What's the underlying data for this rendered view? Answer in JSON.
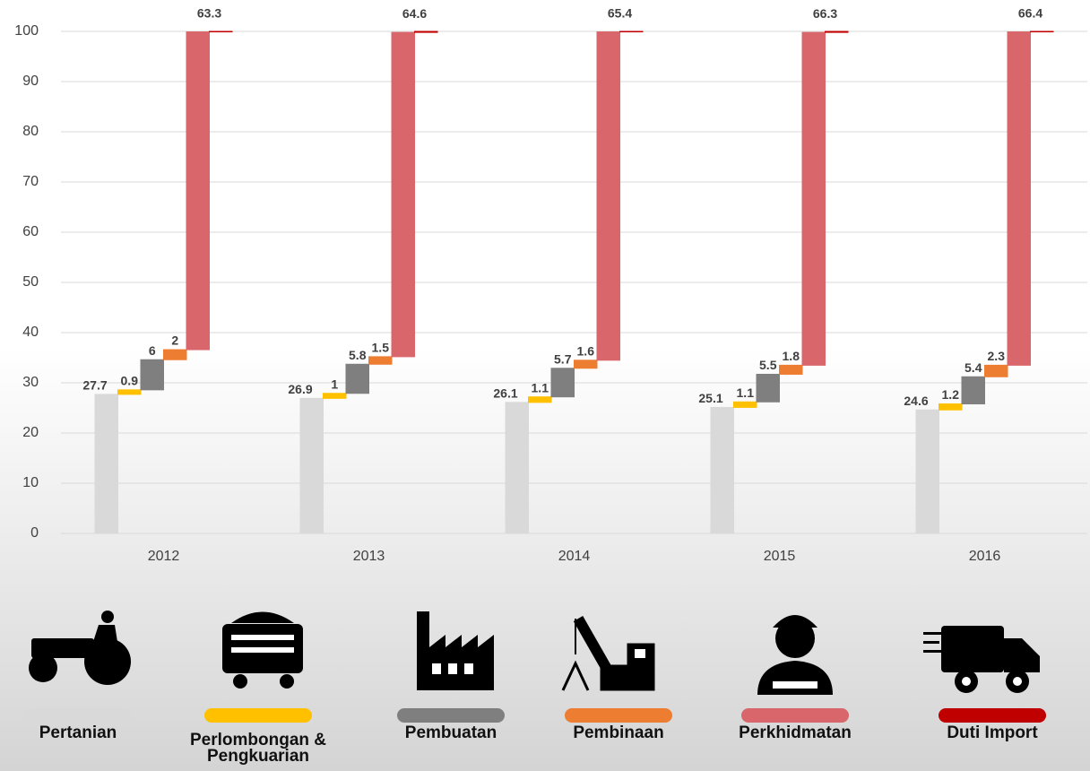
{
  "chart_data": {
    "type": "waterfall",
    "categories": [
      "2012",
      "2013",
      "2014",
      "2015",
      "2016"
    ],
    "series": [
      {
        "name": "Pertanian",
        "color": "#d9d9d9",
        "values": [
          27.7,
          26.9,
          26.1,
          25.1,
          24.6
        ]
      },
      {
        "name": "Perlombongan & Pengkuarian",
        "color": "#ffc000",
        "values": [
          0.9,
          1,
          1.1,
          1.1,
          1.2
        ]
      },
      {
        "name": "Pembuatan",
        "color": "#7f7f7f",
        "values": [
          6,
          5.8,
          5.7,
          5.5,
          5.4
        ]
      },
      {
        "name": "Pembinaan",
        "color": "#ed7d31",
        "values": [
          2,
          1.5,
          1.6,
          1.8,
          2.3
        ]
      },
      {
        "name": "Perkhidmatan",
        "color": "#d9666b",
        "values": [
          63.3,
          64.6,
          65.4,
          66.3,
          66.4
        ]
      },
      {
        "name": "Duti Import",
        "color": "#c00000",
        "values": [
          0.1,
          0.2,
          0.1,
          0.2,
          0.1
        ]
      }
    ],
    "labeled_series": [
      0,
      1,
      2,
      3,
      4
    ],
    "ylim": [
      0,
      100
    ],
    "yticks": [
      0,
      10,
      20,
      30,
      40,
      50,
      60,
      70,
      80,
      90,
      100
    ],
    "grid": true
  }
}
